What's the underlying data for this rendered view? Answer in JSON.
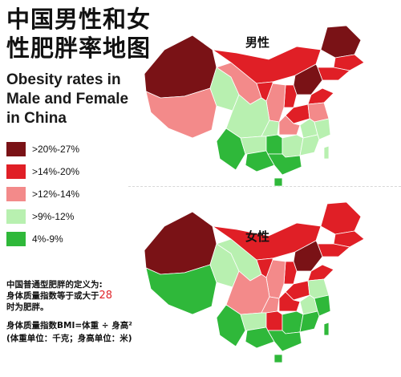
{
  "title_cn": "中国男性和女性肥胖率地图",
  "title_en": "Obesity rates in Male and Female in China",
  "legend": [
    {
      "label": ">20%-27%",
      "color": "#7a1216"
    },
    {
      "label": ">14%-20%",
      "color": "#e01f26"
    },
    {
      "label": ">12%-14%",
      "color": "#f38a8a"
    },
    {
      "label": ">9%-12%",
      "color": "#b8f0b0"
    },
    {
      "label": "4%-9%",
      "color": "#2fb83a"
    }
  ],
  "map_labels": {
    "male": "男性",
    "female": "女性"
  },
  "definition": {
    "line1": "中国普通型肥胖的定义为:",
    "line2_pre": "身体质量指数等于或大于",
    "threshold": "28",
    "line3": "时为肥胖。"
  },
  "bmi": {
    "formula": "身体质量指数BMI=体重 ÷ 身高²",
    "units": "(体重单位：千克；身高单位：米)"
  },
  "regions_male": {
    "xinjiang": ">20%-27%",
    "tibet": ">12%-14%",
    "qinghai": ">9%-12%",
    "gansu": ">12%-14%",
    "inner_mongolia": ">14%-20%",
    "heilongjiang": ">20%-27%",
    "jilin": ">14%-20%",
    "liaoning": ">14%-20%",
    "hebei": ">20%-27%",
    "shandong": ">14%-20%",
    "shanxi": ">14%-20%",
    "shaanxi": ">12%-14%",
    "ningxia": ">14%-20%",
    "henan": ">14%-20%",
    "jiangsu": ">12%-14%",
    "anhui": ">9%-12%",
    "sichuan": ">9%-12%",
    "chongqing": ">9%-12%",
    "hubei": ">12%-14%",
    "zhejiang": ">9%-12%",
    "yunnan": "4%-9%",
    "guizhou": ">9%-12%",
    "hunan": "4%-9%",
    "jiangxi": ">9%-12%",
    "guangxi": "4%-9%",
    "guangdong": "4%-9%",
    "fujian": ">9%-12%",
    "hainan": "4%-9%",
    "taiwan": ">9%-12%"
  },
  "regions_female": {
    "xinjiang": ">20%-27%",
    "tibet": "4%-9%",
    "qinghai": ">9%-12%",
    "gansu": ">9%-12%",
    "inner_mongolia": ">14%-20%",
    "heilongjiang": ">14%-20%",
    "jilin": ">14%-20%",
    "liaoning": ">14%-20%",
    "hebei": ">20%-27%",
    "shandong": ">14%-20%",
    "shanxi": ">14%-20%",
    "shaanxi": ">12%-14%",
    "ningxia": ">14%-20%",
    "henan": ">14%-20%",
    "jiangsu": ">9%-12%",
    "anhui": ">9%-12%",
    "sichuan": ">12%-14%",
    "chongqing": ">12%-14%",
    "hubei": ">14%-20%",
    "zhejiang": "4%-9%",
    "yunnan": "4%-9%",
    "guizhou": ">9%-12%",
    "hunan": ">14%-20%",
    "jiangxi": "4%-9%",
    "guangxi": "4%-9%",
    "guangdong": "4%-9%",
    "fujian": "4%-9%",
    "hainan": "4%-9%",
    "taiwan": "4%-9%"
  }
}
